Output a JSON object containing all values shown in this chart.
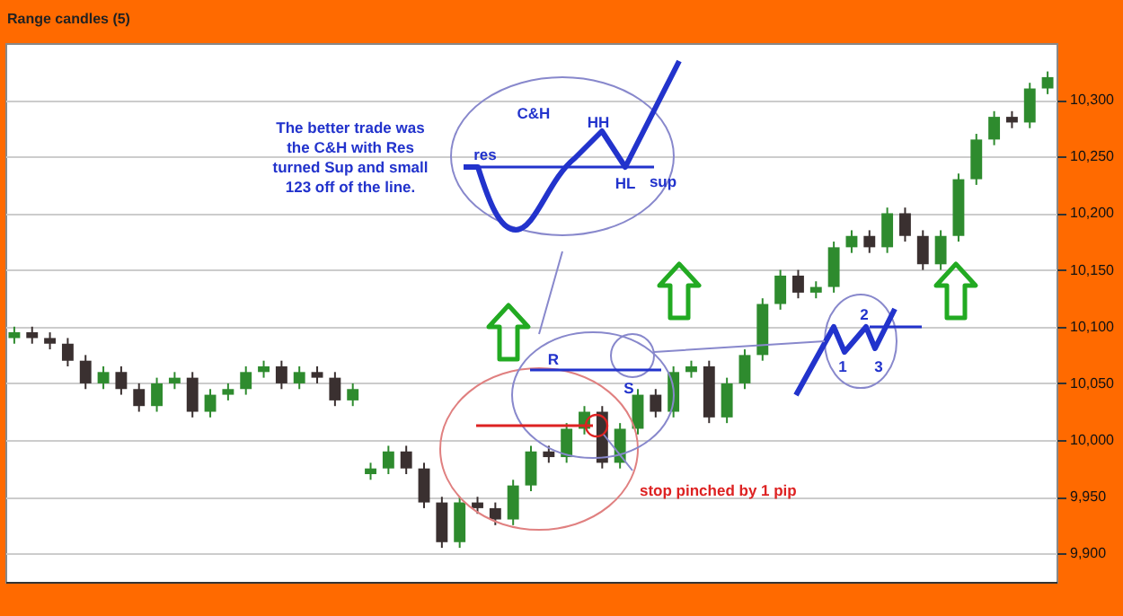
{
  "chart_data": {
    "type": "candlestick",
    "subtitle": "Range candles (5)",
    "categories": [
      null,
      null,
      null,
      null,
      null,
      null,
      null,
      null,
      null,
      null,
      null,
      null,
      null,
      null,
      null,
      null,
      null,
      null,
      null,
      null,
      null,
      null,
      null,
      null,
      null,
      null,
      null,
      null,
      null,
      null,
      null,
      null,
      null,
      null,
      null,
      null,
      null,
      null,
      null,
      null,
      null,
      null,
      null,
      null,
      null,
      null,
      null,
      null,
      null,
      null,
      null,
      null,
      null,
      null,
      null,
      null,
      null,
      null,
      null
    ],
    "ohlc": [
      [
        10090,
        10100,
        10085,
        10095
      ],
      [
        10095,
        10100,
        10085,
        10090
      ],
      [
        10090,
        10095,
        10080,
        10085
      ],
      [
        10085,
        10090,
        10065,
        10070
      ],
      [
        10070,
        10075,
        10045,
        10050
      ],
      [
        10050,
        10065,
        10045,
        10060
      ],
      [
        10060,
        10065,
        10040,
        10045
      ],
      [
        10045,
        10050,
        10025,
        10030
      ],
      [
        10030,
        10055,
        10025,
        10050
      ],
      [
        10050,
        10060,
        10045,
        10055
      ],
      [
        10055,
        10060,
        10020,
        10025
      ],
      [
        10025,
        10045,
        10020,
        10040
      ],
      [
        10040,
        10050,
        10035,
        10045
      ],
      [
        10045,
        10065,
        10040,
        10060
      ],
      [
        10060,
        10070,
        10055,
        10065
      ],
      [
        10065,
        10070,
        10045,
        10050
      ],
      [
        10050,
        10065,
        10045,
        10060
      ],
      [
        10060,
        10065,
        10050,
        10055
      ],
      [
        10055,
        10060,
        10030,
        10035
      ],
      [
        10035,
        10050,
        10030,
        10045
      ],
      [
        9970,
        9980,
        9965,
        9975
      ],
      [
        9975,
        9995,
        9970,
        9990
      ],
      [
        9990,
        9995,
        9970,
        9975
      ],
      [
        9975,
        9980,
        9940,
        9945
      ],
      [
        9945,
        9950,
        9905,
        9910
      ],
      [
        9910,
        9950,
        9905,
        9945
      ],
      [
        9945,
        9950,
        9935,
        9940
      ],
      [
        9940,
        9945,
        9925,
        9930
      ],
      [
        9930,
        9965,
        9925,
        9960
      ],
      [
        9960,
        9995,
        9955,
        9990
      ],
      [
        9990,
        9995,
        9980,
        9985
      ],
      [
        9985,
        10015,
        9980,
        10010
      ],
      [
        10010,
        10030,
        10005,
        10025
      ],
      [
        10025,
        10030,
        9975,
        9980
      ],
      [
        9980,
        10015,
        9975,
        10010
      ],
      [
        10010,
        10045,
        10005,
        10040
      ],
      [
        10040,
        10045,
        10020,
        10025
      ],
      [
        10025,
        10065,
        10020,
        10060
      ],
      [
        10060,
        10070,
        10055,
        10065
      ],
      [
        10065,
        10070,
        10015,
        10020
      ],
      [
        10020,
        10055,
        10015,
        10050
      ],
      [
        10050,
        10080,
        10045,
        10075
      ],
      [
        10075,
        10125,
        10070,
        10120
      ],
      [
        10120,
        10150,
        10115,
        10145
      ],
      [
        10145,
        10150,
        10125,
        10130
      ],
      [
        10130,
        10140,
        10125,
        10135
      ],
      [
        10135,
        10175,
        10130,
        10170
      ],
      [
        10170,
        10185,
        10165,
        10180
      ],
      [
        10180,
        10185,
        10165,
        10170
      ],
      [
        10170,
        10205,
        10165,
        10200
      ],
      [
        10200,
        10205,
        10175,
        10180
      ],
      [
        10180,
        10185,
        10150,
        10155
      ],
      [
        10155,
        10185,
        10150,
        10180
      ],
      [
        10180,
        10235,
        10175,
        10230
      ],
      [
        10230,
        10270,
        10225,
        10265
      ],
      [
        10265,
        10290,
        10260,
        10285
      ],
      [
        10285,
        10290,
        10275,
        10280
      ],
      [
        10280,
        10315,
        10275,
        10310
      ],
      [
        10310,
        10325,
        10305,
        10320
      ]
    ],
    "ylim": [
      9875,
      10350
    ],
    "yticks": [
      {
        "value": 9900,
        "label": "9,900"
      },
      {
        "value": 9950,
        "label": "9,950"
      },
      {
        "value": 10000,
        "label": "10,000"
      },
      {
        "value": 10050,
        "label": "10,050"
      },
      {
        "value": 10100,
        "label": "10,100"
      },
      {
        "value": 10150,
        "label": "10,150"
      },
      {
        "value": 10200,
        "label": "10,200"
      },
      {
        "value": 10250,
        "label": "10,250"
      },
      {
        "value": 10300,
        "label": "10,300"
      }
    ],
    "grid": "y",
    "tick_labels": "y",
    "annotations": [
      "The better trade was the C&H with Res turned Sup and small 123 off of the line.",
      "C&H",
      "res",
      "HH",
      "HL",
      "sup",
      "R",
      "S",
      "stop pinched by 1 pip",
      "1",
      "2",
      "3"
    ]
  }
}
